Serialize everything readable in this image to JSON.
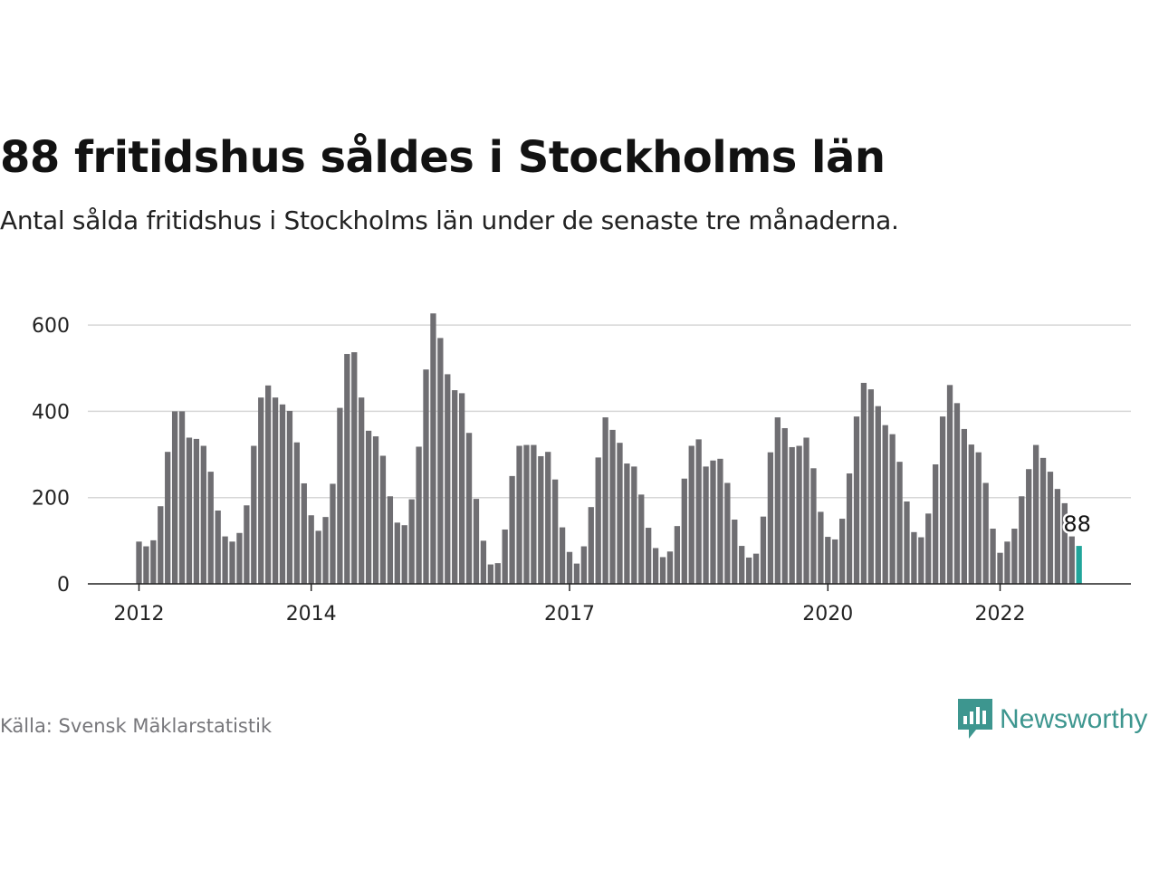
{
  "chart_data": {
    "type": "bar",
    "title": "88 fritidshus såldes i Stockholms län",
    "subtitle": "Antal sålda fritidshus i Stockholms län under de senaste tre månaderna.",
    "source": "Källa: Svensk Mäklarstatistik",
    "start": "2012-01",
    "x_ticks": [
      "2012",
      "2014",
      "2017",
      "2020",
      "2022"
    ],
    "y_ticks": [
      "0",
      "200",
      "400",
      "600"
    ],
    "ylim": [
      0,
      640
    ],
    "grid": true,
    "bar_color": "#6f6e72",
    "highlight_color": "#21a59b",
    "highlight_label": "88",
    "values": [
      98,
      87,
      101,
      180,
      306,
      400,
      400,
      339,
      336,
      320,
      260,
      170,
      110,
      98,
      118,
      182,
      320,
      432,
      460,
      432,
      416,
      401,
      328,
      233,
      159,
      123,
      155,
      232,
      408,
      533,
      537,
      432,
      355,
      342,
      297,
      203,
      142,
      136,
      196,
      318,
      497,
      627,
      570,
      486,
      449,
      442,
      350,
      197,
      100,
      45,
      48,
      126,
      250,
      320,
      322,
      322,
      296,
      306,
      242,
      131,
      74,
      47,
      87,
      178,
      293,
      386,
      357,
      327,
      279,
      272,
      207,
      130,
      83,
      62,
      75,
      134,
      244,
      320,
      335,
      272,
      286,
      290,
      234,
      149,
      88,
      61,
      70,
      156,
      305,
      386,
      361,
      317,
      320,
      339,
      268,
      167,
      109,
      103,
      151,
      256,
      388,
      466,
      451,
      412,
      368,
      347,
      283,
      191,
      120,
      108,
      163,
      277,
      388,
      461,
      419,
      359,
      323,
      305,
      234,
      128,
      72,
      98,
      128,
      203,
      266,
      322,
      292,
      260,
      220,
      187,
      110,
      88
    ]
  },
  "brand": {
    "name": "Newsworthy",
    "icon": "newsworthy-bar-chart-icon",
    "color": "#3d968f"
  }
}
